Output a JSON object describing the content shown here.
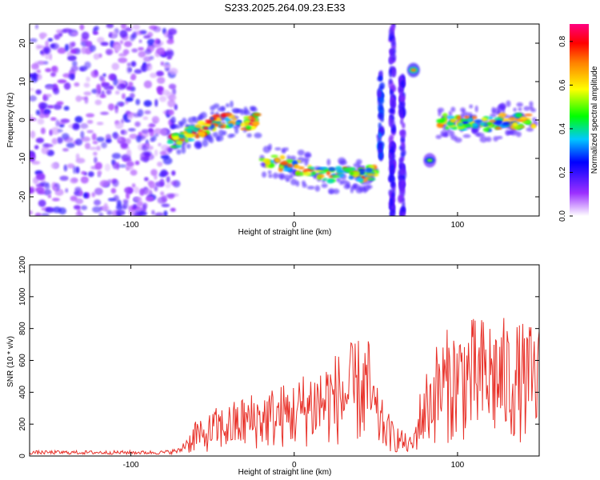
{
  "title": "S233.2025.264.09.23.E33",
  "colors": {
    "frame": "#000000",
    "snr_line": "#e8322a",
    "background": "#ffffff"
  },
  "chart_data": [
    {
      "type": "heatmap",
      "title": "S233.2025.264.09.23.E33",
      "xlabel": "Height of straight line (km)",
      "ylabel": "Frequency (Hz)",
      "xlim": [
        -162,
        150
      ],
      "ylim": [
        -25,
        25
      ],
      "x_ticks": [
        -100,
        0,
        100
      ],
      "y_ticks": [
        -20,
        -10,
        0,
        10,
        20
      ],
      "colorbar": {
        "label": "Normalized spectral amplitude",
        "range": [
          0,
          0.88
        ],
        "ticks": [
          0.0,
          0.2,
          0.4,
          0.6,
          0.8
        ]
      },
      "features": [
        {
          "name": "noise-region",
          "x_range": [
            -162,
            -72
          ],
          "freq_range": [
            -25,
            25
          ],
          "amplitude": 0.1
        },
        {
          "name": "track-1",
          "x": [
            -76,
            -68,
            -60,
            -50,
            -40,
            -30,
            -22
          ],
          "freq": [
            -6,
            -4.5,
            -3,
            -1,
            0,
            -1,
            0
          ],
          "amplitude": 0.8
        },
        {
          "name": "track-2",
          "x": [
            -20,
            -10,
            0,
            10,
            20,
            30,
            40,
            50
          ],
          "freq": [
            -11.5,
            -11,
            -12,
            -13.5,
            -14.5,
            -14,
            -14.5,
            -13.5
          ],
          "amplitude": 0.75
        },
        {
          "name": "vertical-streak-1",
          "x": 53,
          "freq_range": [
            -10,
            12
          ],
          "amplitude": 0.2
        },
        {
          "name": "vertical-streak-2",
          "x": 60,
          "freq_range": [
            -25,
            25
          ],
          "amplitude": 0.15
        },
        {
          "name": "vertical-streak-3",
          "x": 66,
          "freq_range": [
            -25,
            12
          ],
          "amplitude": 0.15
        },
        {
          "name": "spot-1",
          "x": 73,
          "freq": 13,
          "amplitude": 0.7
        },
        {
          "name": "spot-2",
          "x": 83,
          "freq": -10.5,
          "amplitude": 0.5
        },
        {
          "name": "track-3",
          "x": [
            88,
            100,
            110,
            120,
            130,
            140,
            148
          ],
          "freq": [
            0,
            -1,
            -0.5,
            -1,
            0,
            -0.5,
            0
          ],
          "amplitude": 0.7
        }
      ]
    },
    {
      "type": "line",
      "xlabel": "Height of straight line (km)",
      "ylabel": "SNR (10 * v/v)",
      "xlim": [
        -162,
        150
      ],
      "ylim": [
        0,
        1200
      ],
      "x_ticks": [
        -100,
        0,
        100
      ],
      "y_ticks": [
        0,
        200,
        400,
        600,
        800,
        1000,
        1200
      ],
      "series": [
        {
          "name": "SNR",
          "x": [
            -162,
            -140,
            -120,
            -100,
            -80,
            -70,
            -64,
            -60,
            -56,
            -50,
            -40,
            -30,
            -20,
            -10,
            0,
            10,
            20,
            30,
            40,
            45,
            50,
            55,
            60,
            65,
            70,
            73,
            76,
            80,
            85,
            90,
            100,
            105,
            110,
            120,
            130,
            140,
            150
          ],
          "values": [
            20,
            20,
            20,
            20,
            20,
            30,
            100,
            180,
            130,
            200,
            220,
            260,
            280,
            300,
            320,
            380,
            420,
            450,
            500,
            520,
            300,
            220,
            150,
            120,
            80,
            90,
            250,
            350,
            450,
            520,
            560,
            600,
            580,
            600,
            580,
            560,
            560
          ]
        }
      ]
    }
  ]
}
